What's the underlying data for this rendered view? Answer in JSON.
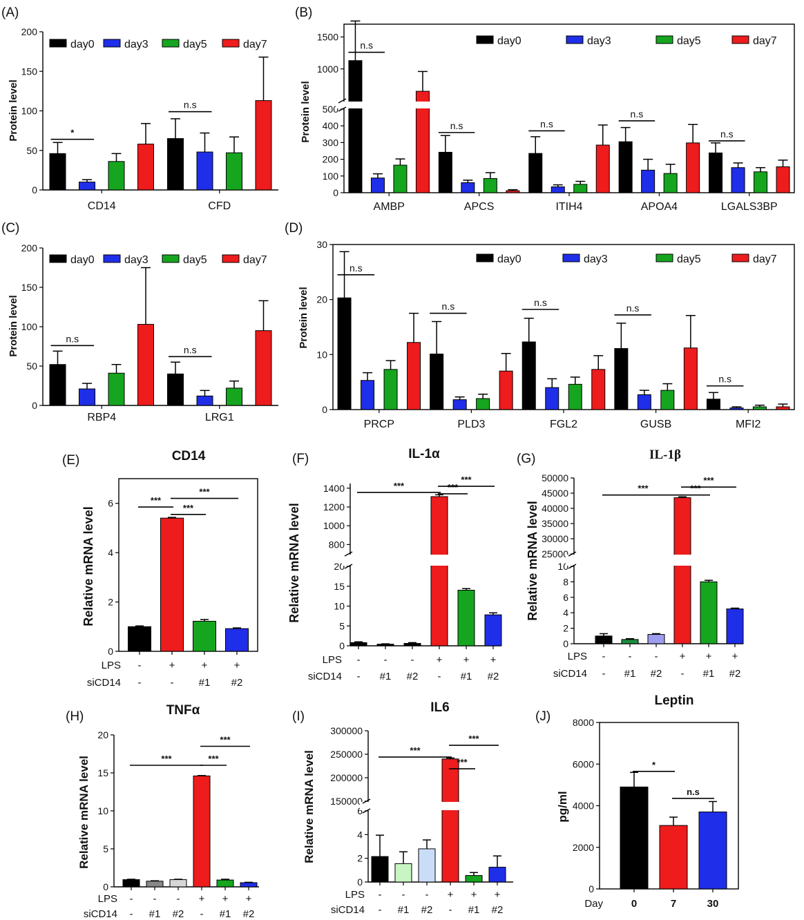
{
  "chart_data": [
    {
      "panel": "(A)",
      "type": "bar",
      "title": "",
      "ylabel": "Protein level",
      "ylim": [
        0,
        200
      ],
      "yticks": [
        0,
        50,
        100,
        150,
        200
      ],
      "legend": {
        "placement": "top",
        "entries": [
          "day0",
          "day3",
          "day5",
          "day7"
        ]
      },
      "categories": [
        "CD14",
        "CFD"
      ],
      "series": [
        {
          "name": "day0",
          "color": "#000000",
          "values": [
            46,
            65
          ],
          "errors": [
            14,
            25
          ]
        },
        {
          "name": "day3",
          "color": "#1f2ee8",
          "values": [
            10,
            48
          ],
          "errors": [
            3,
            24
          ]
        },
        {
          "name": "day5",
          "color": "#16a51e",
          "values": [
            36,
            47
          ],
          "errors": [
            10,
            20
          ]
        },
        {
          "name": "day7",
          "color": "#ee1c1c",
          "values": [
            58,
            113
          ],
          "errors": [
            26,
            55
          ]
        }
      ],
      "comparisons": [
        {
          "category": 0,
          "from": 0,
          "to": 1,
          "y": 64,
          "label": "*"
        },
        {
          "category": 1,
          "from": 0,
          "to": 1,
          "y": 99,
          "label": "n.s"
        }
      ]
    },
    {
      "panel": "(B)",
      "type": "bar",
      "title": "",
      "ylabel": "Protein level",
      "axis_break": {
        "lower": [
          0,
          500
        ],
        "upper": [
          500,
          1700
        ],
        "lower_ticks": [
          0,
          100,
          200,
          300,
          400,
          500
        ],
        "upper_ticks": [
          1000,
          1500
        ]
      },
      "legend": {
        "placement": "top-right",
        "entries": [
          "day0",
          "day3",
          "day5",
          "day7"
        ]
      },
      "categories": [
        "AMBP",
        "APCS",
        "ITIH4",
        "APOA4",
        "LGALS3BP"
      ],
      "series": [
        {
          "name": "day0",
          "color": "#000000",
          "values": [
            1130,
            242,
            235,
            305,
            238
          ],
          "errors": [
            620,
            100,
            100,
            85,
            60
          ]
        },
        {
          "name": "day3",
          "color": "#1f2ee8",
          "values": [
            88,
            60,
            35,
            135,
            150
          ],
          "errors": [
            25,
            15,
            12,
            65,
            28
          ]
        },
        {
          "name": "day5",
          "color": "#16a51e",
          "values": [
            165,
            85,
            50,
            115,
            125
          ],
          "errors": [
            37,
            35,
            18,
            55,
            25
          ]
        },
        {
          "name": "day7",
          "color": "#ee1c1c",
          "values": [
            650,
            12,
            285,
            298,
            155
          ],
          "errors": [
            310,
            6,
            120,
            110,
            40
          ]
        }
      ],
      "comparisons": [
        {
          "category": 0,
          "from": 0,
          "to": 1,
          "y": 1260,
          "label": "n.s"
        },
        {
          "category": 1,
          "from": 0,
          "to": 1,
          "y": 360,
          "label": "n.s"
        },
        {
          "category": 2,
          "from": 0,
          "to": 1,
          "y": 370,
          "label": "n.s"
        },
        {
          "category": 3,
          "from": 0,
          "to": 1,
          "y": 430,
          "label": "n.s"
        },
        {
          "category": 4,
          "from": 0,
          "to": 1,
          "y": 310,
          "label": "n.s"
        }
      ]
    },
    {
      "panel": "(C)",
      "type": "bar",
      "title": "",
      "ylabel": "Protein level",
      "ylim": [
        0,
        200
      ],
      "yticks": [
        0,
        50,
        100,
        150,
        200
      ],
      "legend": {
        "placement": "top",
        "entries": [
          "day0",
          "day3",
          "day5",
          "day7"
        ]
      },
      "categories": [
        "RBP4",
        "LRG1"
      ],
      "series": [
        {
          "name": "day0",
          "color": "#000000",
          "values": [
            52,
            40
          ],
          "errors": [
            17,
            15
          ]
        },
        {
          "name": "day3",
          "color": "#1f2ee8",
          "values": [
            21,
            12
          ],
          "errors": [
            7,
            7
          ]
        },
        {
          "name": "day5",
          "color": "#16a51e",
          "values": [
            41,
            22
          ],
          "errors": [
            11,
            9
          ]
        },
        {
          "name": "day7",
          "color": "#ee1c1c",
          "values": [
            103,
            95
          ],
          "errors": [
            72,
            38
          ]
        }
      ],
      "comparisons": [
        {
          "category": 0,
          "from": 0,
          "to": 1,
          "y": 76,
          "label": "n.s"
        },
        {
          "category": 1,
          "from": 0,
          "to": 1,
          "y": 62,
          "label": "n.s"
        }
      ]
    },
    {
      "panel": "(D)",
      "type": "bar",
      "title": "",
      "ylabel": "Protein level",
      "ylim": [
        0,
        30
      ],
      "yticks": [
        0,
        10,
        20,
        30
      ],
      "legend": {
        "placement": "top-right",
        "entries": [
          "day0",
          "day3",
          "day5",
          "day7"
        ]
      },
      "categories": [
        "PRCP",
        "PLD3",
        "FGL2",
        "GUSB",
        "MFI2"
      ],
      "series": [
        {
          "name": "day0",
          "color": "#000000",
          "values": [
            20.3,
            10.1,
            12.3,
            11.1,
            1.9
          ],
          "errors": [
            8.4,
            5.9,
            4.3,
            4.6,
            1.2
          ]
        },
        {
          "name": "day3",
          "color": "#1f2ee8",
          "values": [
            5.3,
            1.8,
            4.0,
            2.7,
            0.3
          ],
          "errors": [
            1.4,
            0.5,
            1.6,
            0.8,
            0.2
          ]
        },
        {
          "name": "day5",
          "color": "#16a51e",
          "values": [
            7.3,
            2.0,
            4.6,
            3.5,
            0.5
          ],
          "errors": [
            1.6,
            0.8,
            1.3,
            1.2,
            0.3
          ]
        },
        {
          "name": "day7",
          "color": "#ee1c1c",
          "values": [
            12.2,
            7.0,
            7.3,
            11.2,
            0.5
          ],
          "errors": [
            5.3,
            3.2,
            2.5,
            5.9,
            0.5
          ]
        }
      ],
      "comparisons": [
        {
          "category": 0,
          "from": 0,
          "to": 1,
          "y": 24.5,
          "label": "n.s"
        },
        {
          "category": 1,
          "from": 0,
          "to": 1,
          "y": 17.5,
          "label": "n.s"
        },
        {
          "category": 2,
          "from": 0,
          "to": 1,
          "y": 18.2,
          "label": "n.s"
        },
        {
          "category": 3,
          "from": 0,
          "to": 1,
          "y": 17.2,
          "label": "n.s"
        },
        {
          "category": 4,
          "from": 0,
          "to": 1,
          "y": 4.3,
          "label": "n.s"
        }
      ]
    },
    {
      "panel": "(E)",
      "type": "bar",
      "title": "CD14",
      "ylabel": "Relative mRNA level",
      "ylim": [
        0,
        7
      ],
      "yticks": [
        0,
        2,
        4,
        6
      ],
      "values": [
        1.0,
        5.4,
        1.22,
        0.92
      ],
      "errors": [
        0.03,
        0.03,
        0.07,
        0.03
      ],
      "colors": [
        "#000000",
        "#ee1c1c",
        "#16a51e",
        "#1f2ee8"
      ],
      "conditions": {
        "LPS": [
          "-",
          "+",
          "+",
          "+"
        ],
        "siCD14": [
          "-",
          "-",
          "#1",
          "#2"
        ]
      },
      "comparisons": [
        {
          "from": 0,
          "to": 1,
          "y": 5.85,
          "label": "***"
        },
        {
          "from": 1,
          "to": 2,
          "y": 5.55,
          "label": "***"
        },
        {
          "from": 1,
          "to": 3,
          "y": 6.2,
          "label": "***"
        }
      ]
    },
    {
      "panel": "(F)",
      "type": "bar",
      "title": "IL-1α",
      "ylabel": "Relative mRNA level",
      "axis_break": {
        "lower": [
          0,
          20
        ],
        "upper": [
          700,
          1450
        ],
        "lower_ticks": [
          0,
          5,
          10,
          15,
          20
        ],
        "upper_ticks": [
          800,
          1000,
          1200,
          1400
        ]
      },
      "values": [
        0.8,
        0.4,
        0.6,
        1310,
        14.0,
        7.8
      ],
      "errors": [
        0.2,
        0.1,
        0.2,
        20,
        0.4,
        0.5
      ],
      "colors": [
        "#000000",
        "#000000",
        "#000000",
        "#ee1c1c",
        "#16a51e",
        "#1f2ee8"
      ],
      "conditions": {
        "LPS": [
          "-",
          "-",
          "-",
          "+",
          "+",
          "+"
        ],
        "siCD14": [
          "-",
          "#1",
          "#2",
          "-",
          "#1",
          "#2"
        ]
      },
      "comparisons": [
        {
          "from": 0,
          "to": 3,
          "y": 1355,
          "label": "***"
        },
        {
          "from": 3,
          "to": 4,
          "y": 1340,
          "label": "***"
        },
        {
          "from": 3,
          "to": 5,
          "y": 1420,
          "label": "***"
        }
      ]
    },
    {
      "panel": "(G)",
      "type": "bar",
      "title": "IL-1β",
      "ylabel": "Relative mRNA level",
      "axis_break": {
        "lower": [
          0,
          10
        ],
        "upper": [
          25000,
          50000
        ],
        "lower_ticks": [
          0,
          2,
          4,
          6,
          8,
          10
        ],
        "upper_ticks": [
          25000,
          30000,
          35000,
          40000,
          45000,
          50000
        ]
      },
      "values": [
        1.0,
        0.55,
        1.2,
        43500,
        8.0,
        4.5
      ],
      "errors": [
        0.3,
        0.1,
        0.1,
        300,
        0.2,
        0.1
      ],
      "colors": [
        "#000000",
        "#1c8b3e",
        "#9d9df0",
        "#ee1c1c",
        "#16a51e",
        "#1f2ee8"
      ],
      "conditions": {
        "LPS": [
          "-",
          "-",
          "-",
          "+",
          "+",
          "+"
        ],
        "siCD14": [
          "-",
          "#1",
          "#2",
          "-",
          "#1",
          "#2"
        ]
      },
      "comparisons": [
        {
          "from": 0,
          "to": 3,
          "y": 44400,
          "label": "***"
        },
        {
          "from": 3,
          "to": 4,
          "y": 44400,
          "label": "***"
        },
        {
          "from": 3,
          "to": 5,
          "y": 47000,
          "label": "***"
        }
      ]
    },
    {
      "panel": "(H)",
      "type": "bar",
      "title": "TNFα",
      "ylabel": "Relative mRNA level",
      "ylim": [
        0,
        20
      ],
      "yticks": [
        0,
        5,
        10,
        15,
        20
      ],
      "values": [
        0.95,
        0.75,
        0.95,
        14.6,
        0.9,
        0.55
      ],
      "errors": [
        0.05,
        0.05,
        0.05,
        0.05,
        0.1,
        0.05
      ],
      "colors": [
        "#000000",
        "#888888",
        "#d6d6d6",
        "#ee1c1c",
        "#16a51e",
        "#1f2ee8"
      ],
      "conditions": {
        "LPS": [
          "-",
          "-",
          "-",
          "+",
          "+",
          "+"
        ],
        "siCD14": [
          "-",
          "#1",
          "#2",
          "-",
          "#1",
          "#2"
        ]
      },
      "comparisons": [
        {
          "from": 0,
          "to": 3,
          "y": 16.0,
          "label": "***"
        },
        {
          "from": 3,
          "to": 4,
          "y": 16.0,
          "label": "***"
        },
        {
          "from": 3,
          "to": 5,
          "y": 18.5,
          "label": "***"
        }
      ]
    },
    {
      "panel": "(I)",
      "type": "bar",
      "title": "IL6",
      "ylabel": "Relative mRNA level",
      "axis_break": {
        "lower": [
          0,
          6
        ],
        "upper": [
          150000,
          300000
        ],
        "lower_ticks": [
          0,
          2,
          4,
          6
        ],
        "upper_ticks": [
          150000,
          200000,
          250000,
          300000
        ]
      },
      "values": [
        2.15,
        1.55,
        2.8,
        240000,
        0.55,
        1.25
      ],
      "errors": [
        1.8,
        1.0,
        0.75,
        2000,
        0.25,
        0.95
      ],
      "colors": [
        "#000000",
        "#c8f5c2",
        "#c9ddf7",
        "#ee1c1c",
        "#16a51e",
        "#1f2ee8"
      ],
      "conditions": {
        "LPS": [
          "-",
          "-",
          "-",
          "+",
          "+",
          "+"
        ],
        "siCD14": [
          "-",
          "#1",
          "#2",
          "-",
          "#1",
          "#2"
        ]
      },
      "comparisons": [
        {
          "from": 0,
          "to": 3,
          "y": 244000,
          "label": "***"
        },
        {
          "from": 3,
          "to": 4,
          "y": 219000,
          "label": "***"
        },
        {
          "from": 3,
          "to": 5,
          "y": 269000,
          "label": "***"
        }
      ]
    },
    {
      "panel": "(J)",
      "type": "bar",
      "title": "Leptin",
      "ylabel": "pg/ml",
      "ylim": [
        0,
        8000
      ],
      "yticks": [
        0,
        2000,
        4000,
        6000,
        8000
      ],
      "xlabel": "Day",
      "categories": [
        "0",
        "7",
        "30"
      ],
      "values": [
        4900,
        3050,
        3700
      ],
      "errors": [
        700,
        400,
        500
      ],
      "colors": [
        "#000000",
        "#ee1c1c",
        "#1f2ee8"
      ],
      "comparisons": [
        {
          "from": 0,
          "to": 1,
          "y": 5650,
          "label": "*"
        },
        {
          "from": 1,
          "to": 2,
          "y": 4350,
          "label": "n.s"
        }
      ]
    }
  ]
}
